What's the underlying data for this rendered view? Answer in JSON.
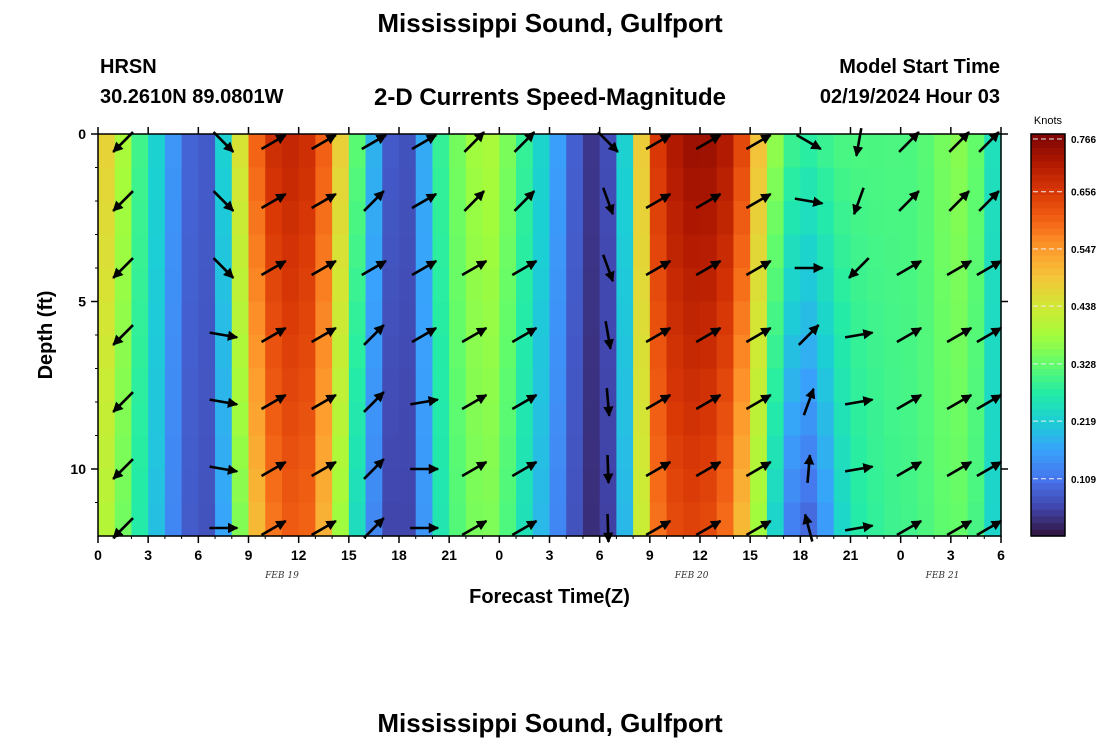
{
  "header": {
    "title": "Mississippi Sound, Gulfport",
    "station": "HRSN",
    "coords": "30.2610N  89.0801W",
    "subtitle": "2-D Currents Speed-Magnitude",
    "model_start_label": "Model Start Time",
    "model_start_value": "02/19/2024 Hour 03"
  },
  "footer": {
    "title": "Mississippi Sound, Gulfport"
  },
  "colors": {
    "scale": [
      "#30123b",
      "#4145ab",
      "#4675ed",
      "#39a2fc",
      "#1bcfd4",
      "#24eca6",
      "#61fc6c",
      "#a4fc3b",
      "#d1e834",
      "#f3c63a",
      "#fe9b2d",
      "#f36315",
      "#d93806",
      "#b11901",
      "#7a0403"
    ],
    "arrow": "#000000"
  },
  "chart_data": {
    "type": "heatmap",
    "xlabel": "Forecast Time(Z)",
    "ylabel": "Depth (ft)",
    "x_tick_labels": [
      "0",
      "3",
      "6",
      "9",
      "12",
      "15",
      "18",
      "21",
      "0",
      "3",
      "6",
      "9",
      "12",
      "15",
      "18",
      "21",
      "0",
      "3",
      "6"
    ],
    "x_ticks_hours": [
      0,
      3,
      6,
      9,
      12,
      15,
      18,
      21,
      24,
      27,
      30,
      33,
      36,
      39,
      42,
      45,
      48,
      51,
      54
    ],
    "day_labels": [
      {
        "label": "FEB 19",
        "hour": 11
      },
      {
        "label": "FEB 20",
        "hour": 35.5
      },
      {
        "label": "FEB 21",
        "hour": 50.5
      }
    ],
    "xlim": [
      0,
      54
    ],
    "ylim": [
      0,
      12
    ],
    "y_ticks": [
      0,
      5,
      10
    ],
    "y_reversed": true,
    "colorbar": {
      "title": "Knots",
      "range": [
        0.0,
        0.766
      ],
      "tick_values": [
        0.109,
        0.219,
        0.328,
        0.438,
        0.547,
        0.656,
        0.766
      ],
      "tick_labels": [
        "0.109",
        "0.219",
        "0.328",
        "0.438",
        "0.547",
        "0.656",
        "0.766"
      ]
    },
    "speed_profile": {
      "note_hours": [
        0,
        1,
        2,
        3,
        4,
        5,
        6,
        7,
        8,
        9,
        10,
        11,
        12,
        13,
        14,
        15,
        16,
        17,
        18,
        19,
        20,
        21,
        22,
        23,
        24,
        25,
        26,
        27,
        28,
        29,
        30,
        31,
        32,
        33,
        34,
        35,
        36,
        37,
        38,
        39,
        40,
        41,
        42,
        43,
        44,
        45,
        46,
        47,
        48,
        49,
        50,
        51,
        52,
        53,
        54
      ],
      "surface": [
        0.5,
        0.45,
        0.33,
        0.27,
        0.18,
        0.12,
        0.06,
        0.1,
        0.35,
        0.55,
        0.66,
        0.69,
        0.69,
        0.66,
        0.56,
        0.4,
        0.25,
        0.12,
        0.04,
        0.1,
        0.25,
        0.33,
        0.36,
        0.4,
        0.38,
        0.32,
        0.26,
        0.2,
        0.12,
        0.05,
        0.03,
        0.1,
        0.35,
        0.62,
        0.7,
        0.73,
        0.74,
        0.73,
        0.7,
        0.58,
        0.42,
        0.32,
        0.28,
        0.29,
        0.31,
        0.31,
        0.31,
        0.31,
        0.31,
        0.31,
        0.33,
        0.36,
        0.36,
        0.3,
        0.2
      ],
      "bottom": [
        0.42,
        0.38,
        0.3,
        0.24,
        0.16,
        0.1,
        0.06,
        0.08,
        0.25,
        0.45,
        0.56,
        0.6,
        0.62,
        0.58,
        0.45,
        0.3,
        0.18,
        0.08,
        0.03,
        0.08,
        0.22,
        0.3,
        0.33,
        0.36,
        0.34,
        0.28,
        0.22,
        0.16,
        0.1,
        0.04,
        0.02,
        0.08,
        0.3,
        0.55,
        0.62,
        0.64,
        0.64,
        0.62,
        0.56,
        0.45,
        0.3,
        0.15,
        0.08,
        0.1,
        0.2,
        0.26,
        0.28,
        0.29,
        0.3,
        0.3,
        0.32,
        0.33,
        0.33,
        0.28,
        0.18
      ]
    },
    "vectors": {
      "hours": [
        1.5,
        7.5,
        10.5,
        13.5,
        16.5,
        19.5,
        22.5,
        25.5,
        30.5,
        33.5,
        36.5,
        39.5,
        42.5,
        45.5,
        48.5,
        51.5,
        54
      ],
      "depths": [
        0,
        2,
        4,
        6,
        8,
        10,
        12
      ],
      "directions_deg": [
        [
          225,
          135,
          60,
          60,
          60,
          60,
          45,
          45,
          135,
          60,
          60,
          60,
          120,
          190,
          45,
          45,
          45
        ],
        [
          225,
          135,
          60,
          60,
          45,
          60,
          45,
          45,
          160,
          60,
          60,
          60,
          100,
          200,
          45,
          45,
          45
        ],
        [
          225,
          135,
          60,
          60,
          60,
          60,
          60,
          60,
          160,
          60,
          60,
          60,
          90,
          225,
          60,
          60,
          60
        ],
        [
          225,
          100,
          60,
          60,
          45,
          60,
          60,
          60,
          170,
          60,
          60,
          60,
          45,
          80,
          60,
          60,
          60
        ],
        [
          225,
          100,
          60,
          60,
          45,
          80,
          60,
          60,
          175,
          60,
          60,
          60,
          20,
          80,
          60,
          60,
          60
        ],
        [
          225,
          100,
          60,
          60,
          45,
          90,
          60,
          60,
          178,
          60,
          60,
          60,
          5,
          80,
          60,
          60,
          60
        ],
        [
          225,
          90,
          60,
          60,
          45,
          90,
          60,
          60,
          178,
          60,
          60,
          60,
          345,
          80,
          60,
          60,
          60
        ]
      ]
    }
  }
}
